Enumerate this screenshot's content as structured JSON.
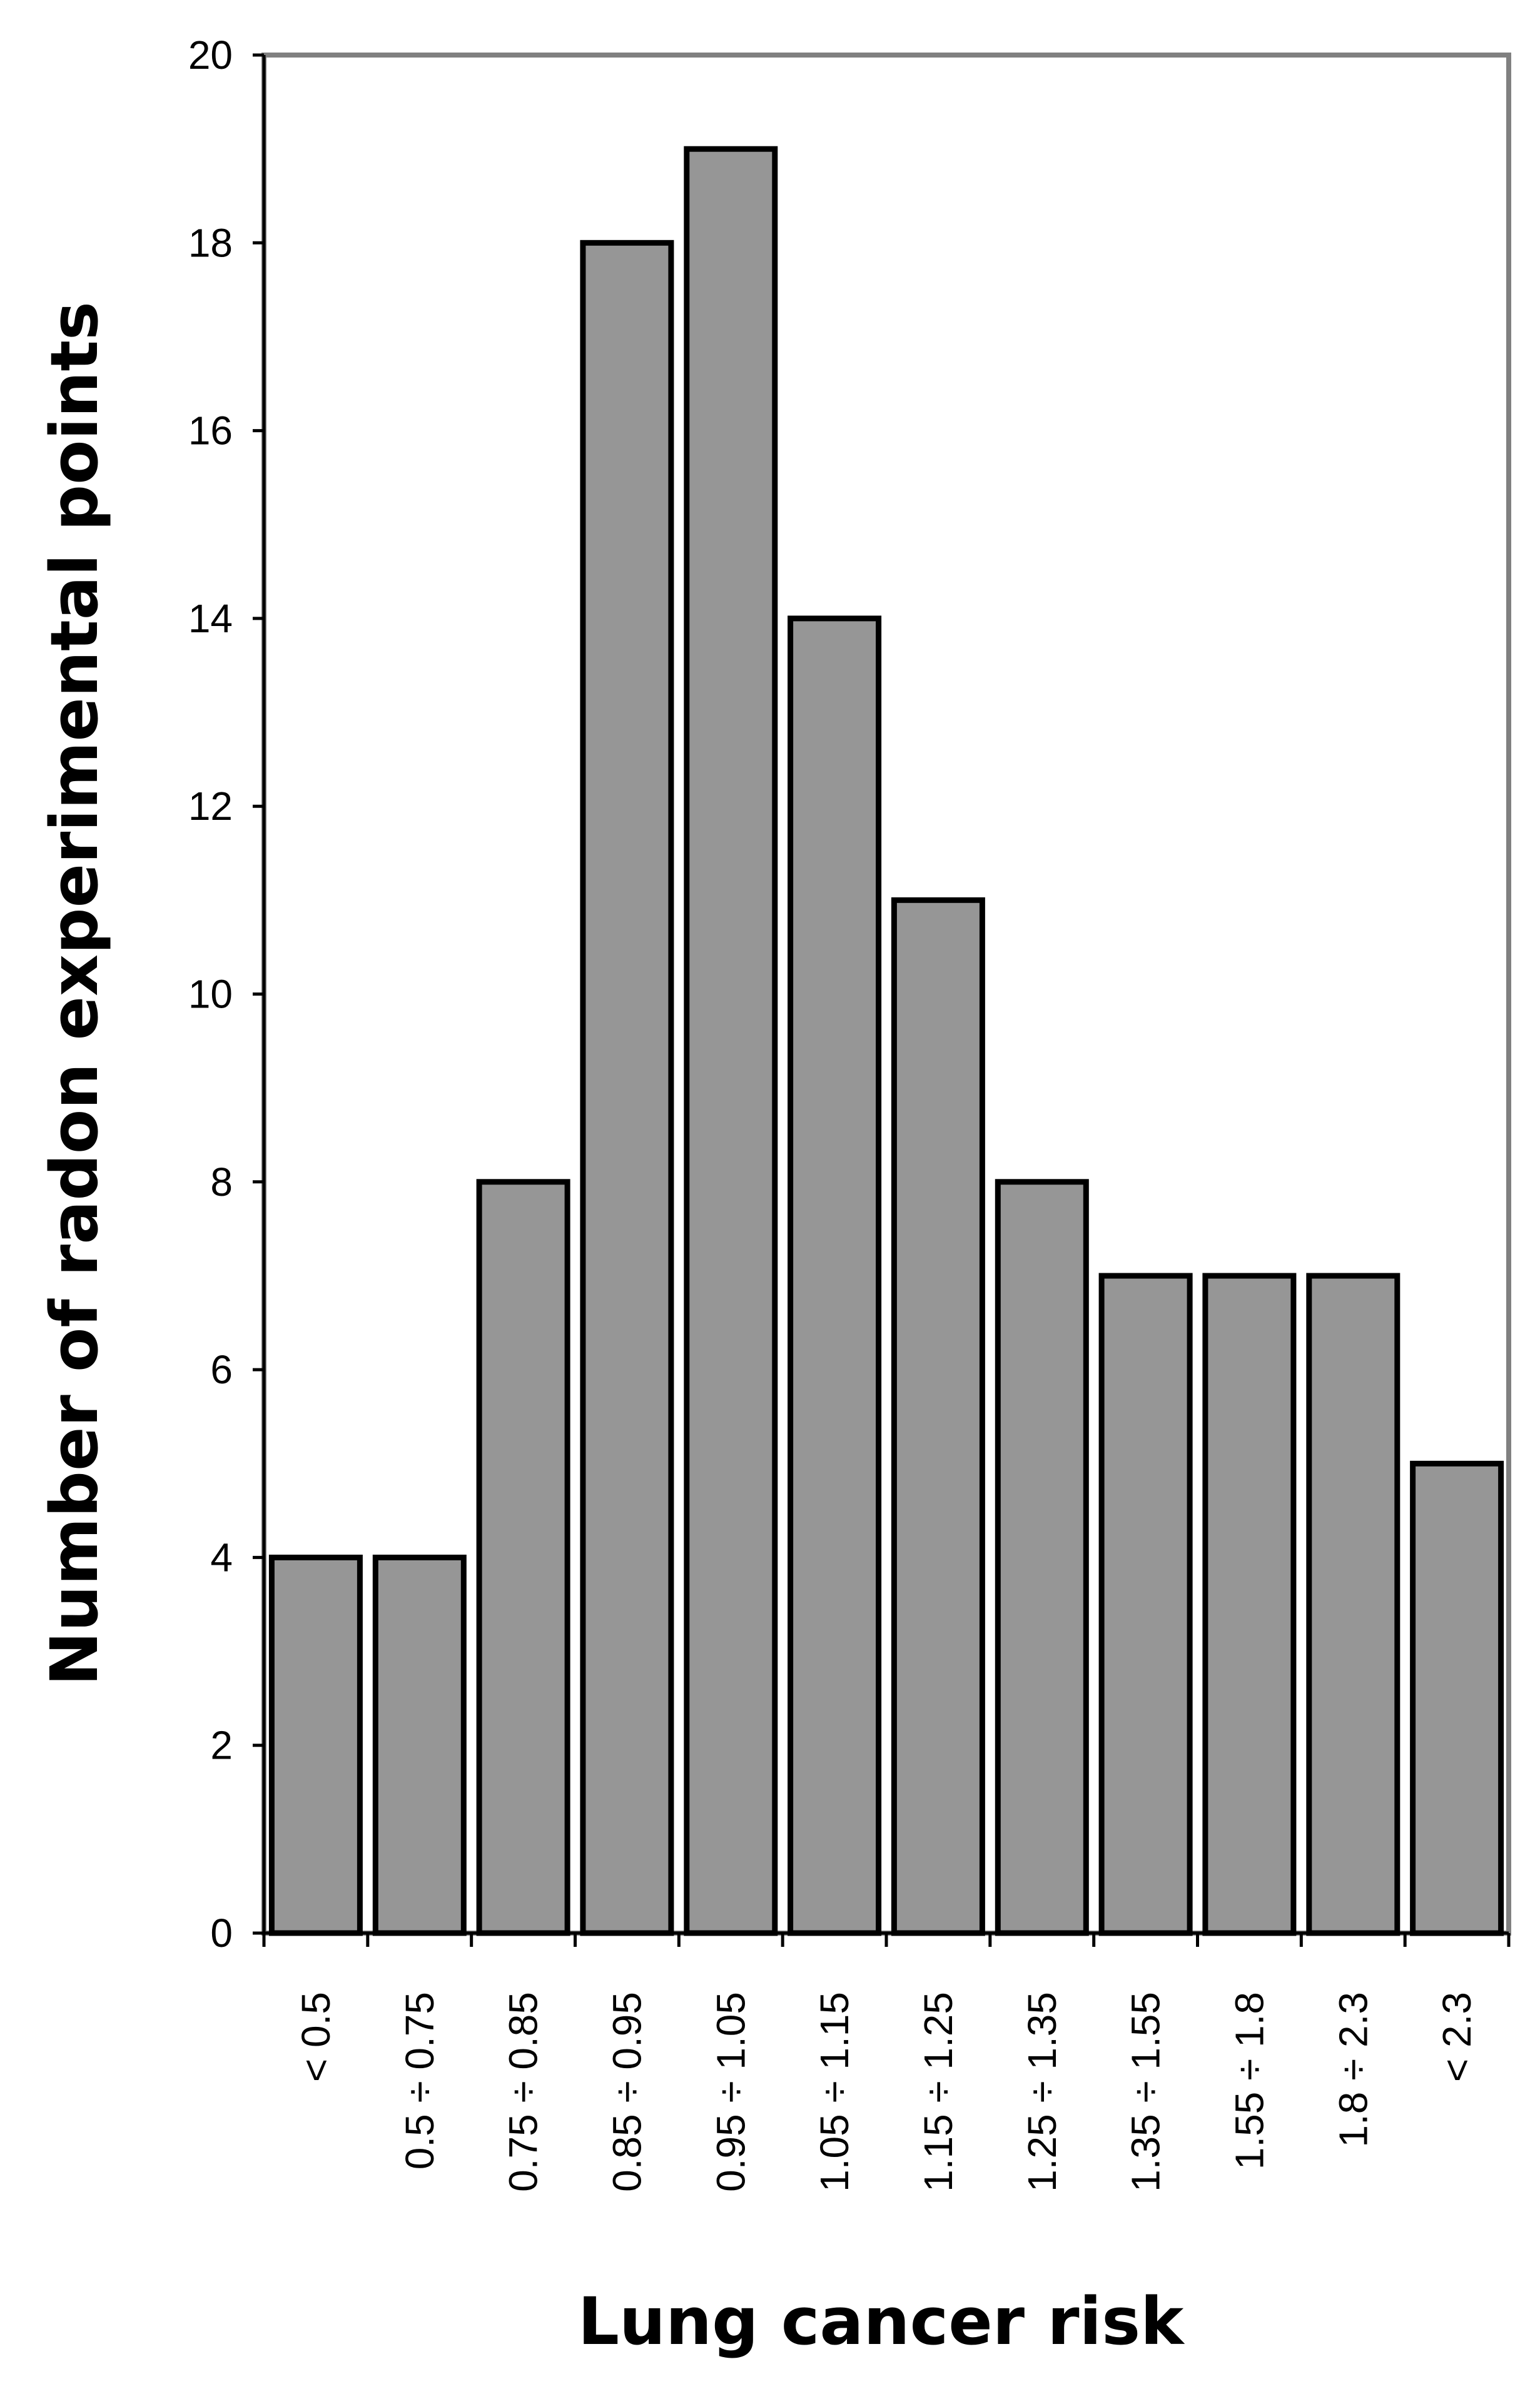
{
  "chart_data": {
    "type": "bar",
    "title": "",
    "xlabel": "Lung cancer risk",
    "ylabel": "Number of radon experimental points",
    "categories": [
      "< 0.5",
      "0.5 ÷ 0.75",
      "0.75 ÷ 0.85",
      "0.85 ÷ 0.95",
      "0.95 ÷ 1.05",
      "1.05 ÷ 1.15",
      "1.15 ÷ 1.25",
      "1.25 ÷ 1.35",
      "1.35 ÷ 1.55",
      "1.55 ÷ 1.8",
      "1.8 ÷ 2.3",
      "< 2.3"
    ],
    "values": [
      4,
      4,
      8,
      18,
      19,
      14,
      11,
      8,
      7,
      7,
      7,
      5
    ],
    "ylim": [
      0,
      20
    ],
    "yticks": [
      0,
      2,
      4,
      6,
      8,
      10,
      12,
      14,
      16,
      18,
      20
    ],
    "grid": false,
    "legend": "none",
    "bar_color": "#969696",
    "bar_edge_color": "#000000",
    "plot_border_color": "#808080"
  }
}
